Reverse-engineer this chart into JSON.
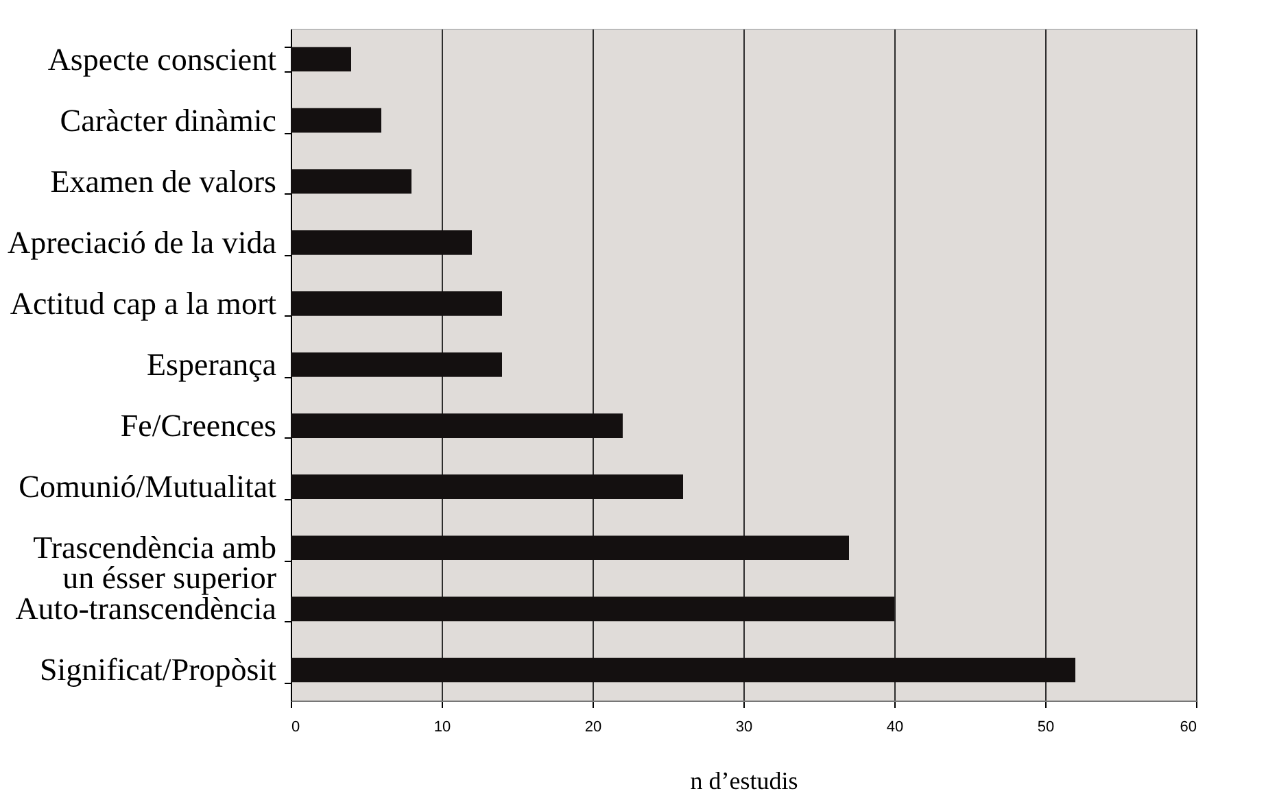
{
  "chart_data": {
    "type": "bar",
    "orientation": "horizontal",
    "xlabel": "n d’estudis",
    "categories": [
      "Aspecte conscient",
      "Caràcter dinàmic",
      "Examen de valors",
      "Apreciació de la vida",
      "Actitud cap a la mort",
      "Esperança",
      "Fe/Creences",
      "Comunió/Mutualitat",
      "Trascendència amb\nun ésser superior",
      "Auto-transcendència",
      "Significat/Propòsit"
    ],
    "values": [
      4,
      6,
      8,
      12,
      14,
      14,
      22,
      26,
      37,
      40,
      52
    ],
    "color": "#141010",
    "xlim": [
      0,
      60
    ],
    "xticks": [
      0,
      10,
      20,
      30,
      40,
      50,
      60
    ],
    "grid": "x"
  }
}
